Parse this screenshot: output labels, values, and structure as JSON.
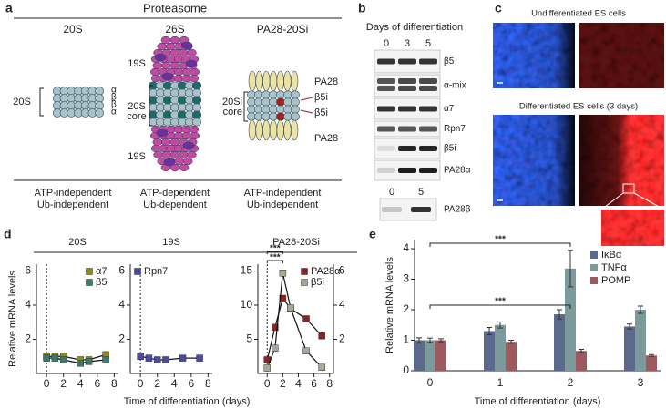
{
  "panel_a": {
    "label": "a",
    "title": "Proteasome",
    "columns": [
      "20S",
      "26S",
      "PA28-20Si"
    ],
    "ring_labels": [
      "α",
      "β",
      "β",
      "α"
    ],
    "label_20s": "20S",
    "labels_26s": [
      "19S",
      "20S",
      "core",
      "19S"
    ],
    "labels_pa28": [
      "PA28",
      "β5i",
      "β5i",
      "PA28",
      "20Si",
      "core"
    ],
    "captions": [
      [
        "ATP-independent",
        "Ub-independent"
      ],
      [
        "ATP-dependent",
        "Ub-dependent"
      ],
      [
        "ATP-independent",
        "Ub-independent"
      ]
    ]
  },
  "panel_b": {
    "label": "b",
    "title": "Days of differentiation",
    "lanes": [
      "0",
      "3",
      "5"
    ],
    "rows": [
      "β5",
      "α-mix",
      "α7",
      "Rpn7",
      "β5i",
      "PA28α"
    ],
    "lanes2": [
      "0",
      "5"
    ],
    "row2": "PA28β"
  },
  "panel_c": {
    "label": "c",
    "top": "Undifferentiated ES cells",
    "bottom": "Differentiated ES cells (3 days)"
  },
  "panel_d": {
    "label": "d",
    "headers": [
      "20S",
      "19S",
      "PA28-20Si"
    ],
    "ylabel": "Relative mRNA levels",
    "xlabel": "Time of differentiation (days)"
  },
  "panel_e": {
    "label": "e"
  },
  "chart_data": [
    {
      "type": "line",
      "x": [
        0,
        1,
        2,
        4,
        5,
        7
      ],
      "xlim": [
        -1.2,
        8.5
      ],
      "xticks": [
        0,
        2,
        4,
        6,
        8
      ],
      "ylim": [
        0,
        6.4
      ],
      "yticks": [
        2,
        4,
        6
      ],
      "legend": "upper right",
      "series": [
        {
          "name": "α7",
          "color": "#8b8b20",
          "values": [
            1.0,
            1.0,
            1.0,
            0.8,
            0.8,
            1.1
          ]
        },
        {
          "name": "β5",
          "color": "#3d7a6d",
          "values": [
            0.9,
            0.9,
            0.8,
            0.6,
            0.7,
            0.8
          ]
        }
      ]
    },
    {
      "type": "line",
      "x": [
        0,
        1,
        2,
        3,
        5,
        7
      ],
      "xlim": [
        -1.2,
        8.5
      ],
      "xticks": [
        0,
        2,
        4,
        6,
        8
      ],
      "ylim": [
        0,
        6.4
      ],
      "yticks": [
        2,
        4,
        6
      ],
      "legend": "upper left",
      "series": [
        {
          "name": "Rpn7",
          "color": "#4a4a9e",
          "values": [
            1.0,
            0.9,
            0.8,
            0.8,
            0.9,
            0.9
          ]
        }
      ]
    },
    {
      "type": "line",
      "x": [
        0,
        1,
        2,
        3,
        5,
        7
      ],
      "xlim": [
        -1.2,
        8.5
      ],
      "xticks": [
        0,
        2,
        4,
        6,
        8
      ],
      "ylim": [
        0,
        16
      ],
      "yticks": [
        5,
        10,
        15
      ],
      "y2lim": [
        0,
        6.4
      ],
      "y2ticks": [
        2,
        4,
        6
      ],
      "legend": "upper right",
      "annotations": [
        "***",
        "***"
      ],
      "series": [
        {
          "name": "PA28α",
          "color": "#8b2525",
          "axis": "y2",
          "values": [
            0.8,
            2.7,
            4.4,
            3.8,
            3.2,
            2.2
          ]
        },
        {
          "name": "β5i",
          "color": "#a3aa98",
          "values": [
            0.8,
            3.7,
            14.7,
            9.6,
            3.3,
            0.9
          ]
        }
      ]
    },
    {
      "type": "bar",
      "categories": [
        "0",
        "1",
        "2",
        "3"
      ],
      "ylim": [
        0,
        4.3
      ],
      "yticks": [
        0,
        1,
        2,
        3,
        4
      ],
      "ylabel": "Relative mRNA levels",
      "xlabel": "Time of differentiation (days)",
      "legend": "upper right",
      "annotations": [
        "***",
        "***"
      ],
      "series": [
        {
          "name": "IκBα",
          "color": "#5b6a8c",
          "values": [
            1.0,
            1.3,
            1.85,
            1.45
          ],
          "errors": [
            0.08,
            0.12,
            0.15,
            0.08
          ]
        },
        {
          "name": "TNFα",
          "color": "#7c9a9c",
          "values": [
            1.0,
            1.5,
            3.35,
            2.0
          ],
          "errors": [
            0.07,
            0.1,
            0.6,
            0.12
          ]
        },
        {
          "name": "POMP",
          "color": "#9c5a5e",
          "values": [
            1.0,
            0.95,
            0.65,
            0.5
          ],
          "errors": [
            0.05,
            0.05,
            0.05,
            0.03
          ]
        }
      ]
    }
  ]
}
